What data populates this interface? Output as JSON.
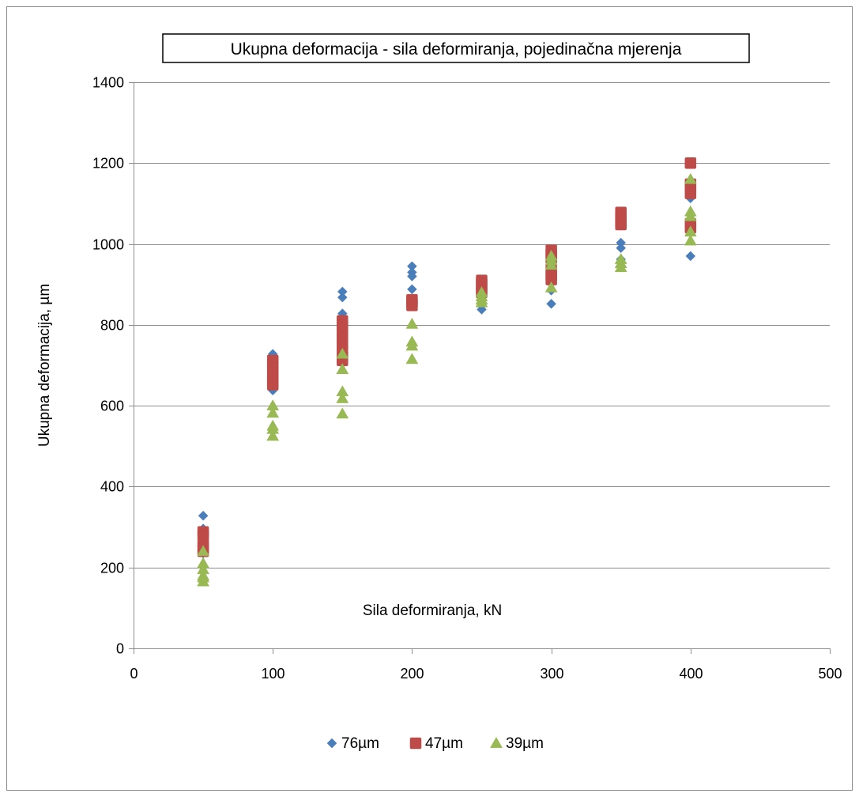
{
  "chart_data": {
    "type": "scatter",
    "title": "Ukupna deformacija - sila deformiranja, pojedinačna mjerenja",
    "xlabel": "Sila deformiranja, kN",
    "ylabel": "Ukupna deformacija, µm",
    "xlim": [
      0,
      500
    ],
    "ylim": [
      0,
      1400
    ],
    "xticks": [
      0,
      100,
      200,
      300,
      400,
      500
    ],
    "yticks": [
      0,
      200,
      400,
      600,
      800,
      1000,
      1200,
      1400
    ],
    "grid": "horizontal",
    "legend_position": "bottom",
    "series": [
      {
        "name": "76µm",
        "color": "#4a7ebb",
        "marker": "diamond",
        "points": [
          [
            50,
            328
          ],
          [
            50,
            296
          ],
          [
            50,
            270
          ],
          [
            50,
            258
          ],
          [
            50,
            245
          ],
          [
            50,
            235
          ],
          [
            100,
            728
          ],
          [
            100,
            710
          ],
          [
            100,
            695
          ],
          [
            100,
            680
          ],
          [
            100,
            665
          ],
          [
            100,
            650
          ],
          [
            100,
            638
          ],
          [
            150,
            882
          ],
          [
            150,
            868
          ],
          [
            150,
            828
          ],
          [
            150,
            805
          ],
          [
            150,
            790
          ],
          [
            150,
            775
          ],
          [
            200,
            945
          ],
          [
            200,
            930
          ],
          [
            200,
            920
          ],
          [
            200,
            888
          ],
          [
            200,
            860
          ],
          [
            250,
            900
          ],
          [
            250,
            875
          ],
          [
            250,
            860
          ],
          [
            250,
            848
          ],
          [
            250,
            838
          ],
          [
            300,
            960
          ],
          [
            300,
            940
          ],
          [
            300,
            920
          ],
          [
            300,
            885
          ],
          [
            300,
            852
          ],
          [
            350,
            1003
          ],
          [
            350,
            990
          ],
          [
            350,
            962
          ],
          [
            350,
            955
          ],
          [
            400,
            1145
          ],
          [
            400,
            1113
          ],
          [
            400,
            1050
          ],
          [
            400,
            970
          ]
        ]
      },
      {
        "name": "47µm",
        "color": "#be4b48",
        "marker": "square",
        "points": [
          [
            50,
            288
          ],
          [
            50,
            282
          ],
          [
            50,
            262
          ],
          [
            50,
            250
          ],
          [
            50,
            240
          ],
          [
            100,
            712
          ],
          [
            100,
            702
          ],
          [
            100,
            692
          ],
          [
            100,
            680
          ],
          [
            100,
            668
          ],
          [
            100,
            658
          ],
          [
            100,
            652
          ],
          [
            150,
            810
          ],
          [
            150,
            800
          ],
          [
            150,
            785
          ],
          [
            150,
            768
          ],
          [
            150,
            752
          ],
          [
            150,
            738
          ],
          [
            150,
            722
          ],
          [
            150,
            712
          ],
          [
            200,
            862
          ],
          [
            200,
            856
          ],
          [
            200,
            848
          ],
          [
            250,
            910
          ],
          [
            250,
            902
          ],
          [
            250,
            890
          ],
          [
            250,
            880
          ],
          [
            300,
            985
          ],
          [
            300,
            975
          ],
          [
            300,
            965
          ],
          [
            300,
            935
          ],
          [
            300,
            922
          ],
          [
            300,
            912
          ],
          [
            350,
            1078
          ],
          [
            350,
            1065
          ],
          [
            350,
            1055
          ],
          [
            350,
            1048
          ],
          [
            400,
            1200
          ],
          [
            400,
            1148
          ],
          [
            400,
            1138
          ],
          [
            400,
            1125
          ],
          [
            400,
            1050
          ],
          [
            400,
            1040
          ]
        ]
      },
      {
        "name": "39µm",
        "color": "#98b954",
        "marker": "triangle",
        "points": [
          [
            50,
            240
          ],
          [
            50,
            210
          ],
          [
            50,
            195
          ],
          [
            50,
            180
          ],
          [
            50,
            175
          ],
          [
            50,
            165
          ],
          [
            100,
            600
          ],
          [
            100,
            582
          ],
          [
            100,
            550
          ],
          [
            100,
            542
          ],
          [
            100,
            525
          ],
          [
            150,
            728
          ],
          [
            150,
            690
          ],
          [
            150,
            635
          ],
          [
            150,
            618
          ],
          [
            150,
            580
          ],
          [
            200,
            802
          ],
          [
            200,
            758
          ],
          [
            200,
            748
          ],
          [
            200,
            715
          ],
          [
            250,
            880
          ],
          [
            250,
            870
          ],
          [
            250,
            862
          ],
          [
            250,
            855
          ],
          [
            300,
            970
          ],
          [
            300,
            960
          ],
          [
            300,
            948
          ],
          [
            300,
            892
          ],
          [
            350,
            962
          ],
          [
            350,
            952
          ],
          [
            350,
            942
          ],
          [
            400,
            1160
          ],
          [
            400,
            1080
          ],
          [
            400,
            1068
          ],
          [
            400,
            1030
          ],
          [
            400,
            1008
          ]
        ]
      }
    ]
  }
}
